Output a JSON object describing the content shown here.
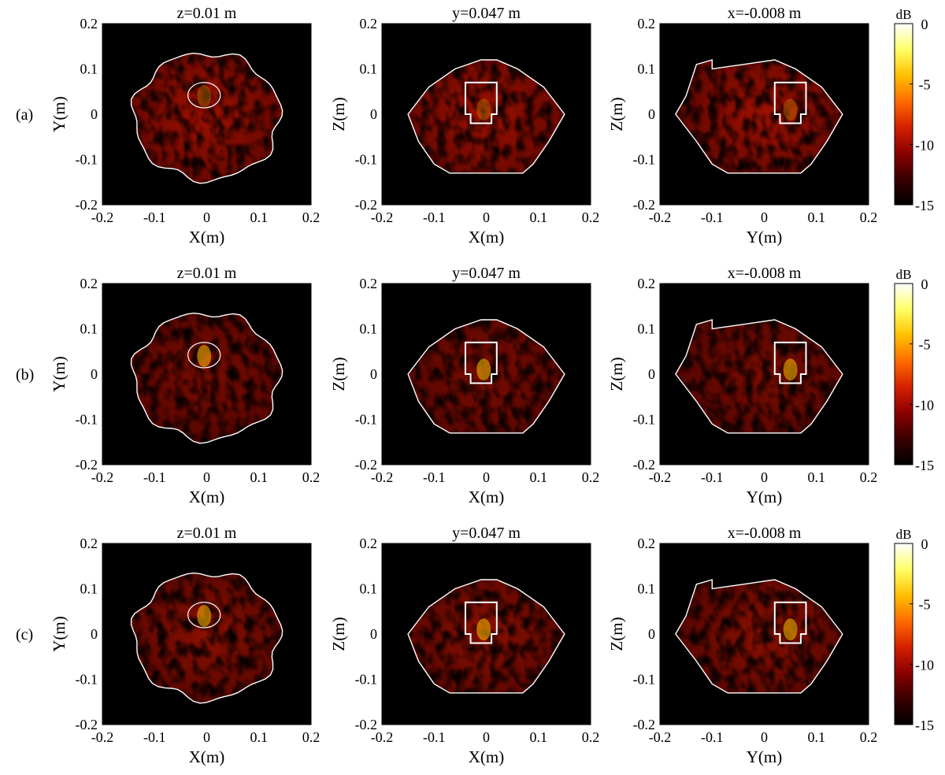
{
  "chart_data": {
    "type": "heatmap",
    "row_labels": [
      "(a)",
      "(b)",
      "(c)"
    ],
    "panel_titles": [
      "z=0.01 m",
      "y=0.047 m",
      "x=-0.008 m"
    ],
    "xlabels": [
      "X(m)",
      "X(m)",
      "Y(m)"
    ],
    "ylabels": [
      "Y(m)",
      "Z(m)",
      "Z(m)"
    ],
    "xlim": [
      -0.2,
      0.2
    ],
    "ylim": [
      -0.2,
      0.2
    ],
    "xticks": [
      -0.2,
      -0.1,
      0,
      0.1,
      0.2
    ],
    "yticks": [
      -0.2,
      -0.1,
      0,
      0.1,
      0.2
    ],
    "tick_labels": [
      "-0.2",
      "-0.1",
      "0",
      "0.1",
      "0.2"
    ],
    "colorbar": {
      "label": "dB",
      "range": [
        -15,
        0
      ],
      "ticks": [
        0,
        -5,
        -10,
        -15
      ],
      "tick_labels": [
        "0",
        "-5",
        "-10",
        "-15"
      ],
      "colormap": [
        "#000000",
        "#3a0000",
        "#8b0000",
        "#d42000",
        "#ff6a00",
        "#ffc000",
        "#ffff66",
        "#ffffff"
      ]
    },
    "background_color": "#000000",
    "outline_color": "#ffffff"
  }
}
